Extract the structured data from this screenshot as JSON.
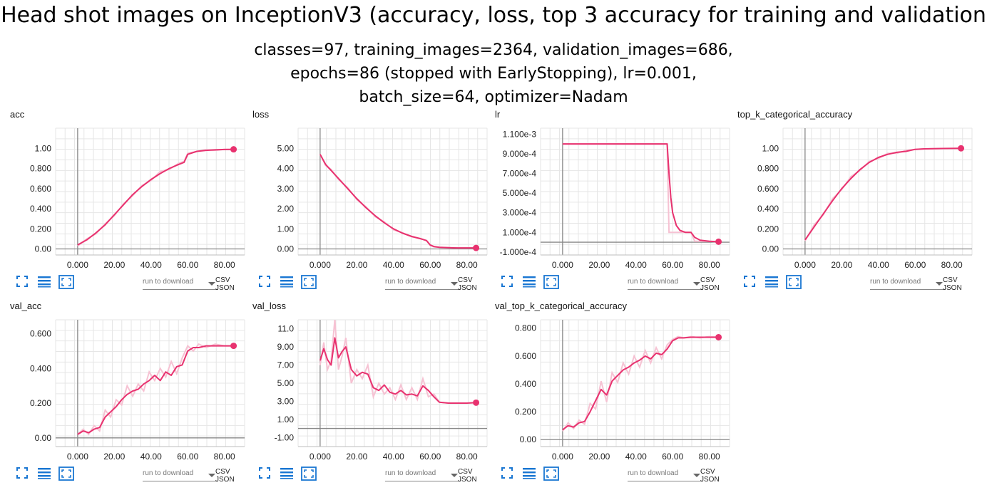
{
  "figure": {
    "title": "Head shot images on InceptionV3 (accuracy, loss, top 3 accuracy for training and validation",
    "subtitle_lines": [
      "classes=97, training_images=2364, validation_images=686,",
      "epochs=86 (stopped with EarlyStopping), lr=0.001,",
      "batch_size=64, optimizer=Nadam"
    ]
  },
  "controls": {
    "download_placeholder": "run to download",
    "csv": "CSV",
    "json": "JSON",
    "icons": [
      "fit-screen-icon",
      "list-icon",
      "expand-icon"
    ]
  },
  "colors": {
    "line": "#e8326f",
    "raw": "#f6c2d3",
    "grid": "#e6e6e6",
    "axis": "#888888",
    "icon": "#1976d2"
  },
  "chart_data": [
    {
      "title": "acc",
      "type": "line",
      "xlim": [
        -12,
        91
      ],
      "ylim": [
        -0.06,
        1.2
      ],
      "xticks": [
        0,
        20,
        40,
        60,
        80
      ],
      "xtick_labels": [
        "0.000",
        "20.00",
        "40.00",
        "60.00",
        "80.00"
      ],
      "yticks": [
        0,
        0.2,
        0.4,
        0.6,
        0.8,
        1.0
      ],
      "ytick_labels": [
        "0.00",
        "0.200",
        "0.400",
        "0.600",
        "0.800",
        "1.00"
      ],
      "x": [
        0,
        5,
        10,
        15,
        20,
        25,
        30,
        35,
        40,
        45,
        50,
        55,
        58,
        60,
        65,
        70,
        75,
        80,
        85
      ],
      "values": [
        0.04,
        0.09,
        0.16,
        0.24,
        0.34,
        0.44,
        0.54,
        0.62,
        0.69,
        0.75,
        0.8,
        0.84,
        0.86,
        0.94,
        0.97,
        0.98,
        0.985,
        0.988,
        0.99
      ],
      "raw": [
        0.03,
        0.1,
        0.15,
        0.25,
        0.33,
        0.45,
        0.53,
        0.63,
        0.68,
        0.77,
        0.79,
        0.85,
        0.87,
        0.95,
        0.97,
        0.985,
        0.98,
        0.99,
        0.99
      ],
      "grid": true
    },
    {
      "title": "loss",
      "type": "line",
      "xlim": [
        -12,
        91
      ],
      "ylim": [
        -0.3,
        6
      ],
      "xticks": [
        0,
        20,
        40,
        60,
        80
      ],
      "xtick_labels": [
        "0.000",
        "20.00",
        "40.00",
        "60.00",
        "80.00"
      ],
      "yticks": [
        0,
        1,
        2,
        3,
        4,
        5
      ],
      "ytick_labels": [
        "0.00",
        "1.00",
        "2.00",
        "3.00",
        "4.00",
        "5.00"
      ],
      "x": [
        0,
        3,
        6,
        10,
        15,
        20,
        25,
        30,
        35,
        40,
        45,
        50,
        55,
        58,
        60,
        62,
        65,
        70,
        75,
        80,
        85
      ],
      "values": [
        4.7,
        4.2,
        3.9,
        3.5,
        3.0,
        2.5,
        2.05,
        1.65,
        1.3,
        1.0,
        0.78,
        0.62,
        0.5,
        0.42,
        0.2,
        0.12,
        0.08,
        0.06,
        0.05,
        0.05,
        0.05
      ],
      "raw": [
        4.7,
        4.15,
        3.95,
        3.45,
        3.05,
        2.45,
        2.1,
        1.6,
        1.35,
        0.95,
        0.8,
        0.6,
        0.52,
        0.4,
        0.18,
        0.1,
        0.08,
        0.06,
        0.05,
        0.05,
        0.05
      ],
      "grid": true
    },
    {
      "title": "lr",
      "type": "line",
      "xlim": [
        -12,
        91
      ],
      "ylim": [
        -0.00013,
        0.00116
      ],
      "xticks": [
        0,
        20,
        40,
        60,
        80
      ],
      "xtick_labels": [
        "0.000",
        "20.00",
        "40.00",
        "60.00",
        "80.00"
      ],
      "yticks": [
        -0.0001,
        0.0001,
        0.0003,
        0.0005,
        0.0007,
        0.0009,
        0.0011
      ],
      "ytick_labels": [
        "-1.000e-4",
        "1.000e-4",
        "3.000e-4",
        "5.000e-4",
        "7.000e-4",
        "9.000e-4",
        "1.100e-3"
      ],
      "x": [
        0,
        10,
        20,
        30,
        40,
        50,
        57,
        58,
        59,
        60,
        62,
        64,
        67,
        70,
        72,
        75,
        80,
        85
      ],
      "values": [
        0.001,
        0.001,
        0.001,
        0.001,
        0.001,
        0.001,
        0.001,
        0.0007,
        0.00045,
        0.0003,
        0.00017,
        0.00012,
        0.0001,
        0.0001,
        5e-05,
        2e-05,
        1e-05,
        5e-06
      ],
      "raw": [
        0.001,
        0.001,
        0.001,
        0.001,
        0.001,
        0.001,
        0.001,
        0.0001,
        0.0001,
        0.0001,
        0.0001,
        0.0001,
        0.0001,
        0.0001,
        1e-05,
        1e-05,
        1e-05,
        1e-06
      ],
      "grid": true
    },
    {
      "title": "top_k_categorical_accuracy",
      "type": "line",
      "xlim": [
        -12,
        91
      ],
      "ylim": [
        -0.06,
        1.2
      ],
      "xticks": [
        0,
        20,
        40,
        60,
        80
      ],
      "xtick_labels": [
        "0.000",
        "20.00",
        "40.00",
        "60.00",
        "80.00"
      ],
      "yticks": [
        0,
        0.2,
        0.4,
        0.6,
        0.8,
        1.0
      ],
      "ytick_labels": [
        "0.00",
        "0.200",
        "0.400",
        "0.600",
        "0.800",
        "1.00"
      ],
      "x": [
        0,
        5,
        10,
        15,
        20,
        25,
        30,
        35,
        40,
        45,
        50,
        55,
        60,
        65,
        70,
        75,
        80,
        85
      ],
      "values": [
        0.09,
        0.22,
        0.35,
        0.48,
        0.6,
        0.7,
        0.79,
        0.86,
        0.91,
        0.94,
        0.96,
        0.97,
        0.99,
        0.995,
        0.997,
        0.998,
        0.999,
        1.0
      ],
      "raw": [
        0.08,
        0.24,
        0.34,
        0.5,
        0.59,
        0.72,
        0.78,
        0.87,
        0.9,
        0.95,
        0.95,
        0.98,
        0.99,
        0.995,
        0.997,
        0.998,
        0.999,
        1.0
      ],
      "grid": true
    },
    {
      "title": "val_acc",
      "type": "line",
      "xlim": [
        -12,
        91
      ],
      "ylim": [
        -0.05,
        0.68
      ],
      "xticks": [
        0,
        20,
        40,
        60,
        80
      ],
      "xtick_labels": [
        "0.000",
        "20.00",
        "40.00",
        "60.00",
        "80.00"
      ],
      "yticks": [
        0,
        0.2,
        0.4,
        0.6
      ],
      "ytick_labels": [
        "0.00",
        "0.200",
        "0.400",
        "0.600"
      ],
      "x": [
        0,
        3,
        6,
        9,
        12,
        15,
        18,
        21,
        24,
        27,
        30,
        33,
        36,
        39,
        42,
        45,
        48,
        51,
        54,
        57,
        60,
        63,
        66,
        70,
        75,
        80,
        85
      ],
      "values": [
        0.02,
        0.04,
        0.03,
        0.05,
        0.06,
        0.12,
        0.15,
        0.18,
        0.22,
        0.25,
        0.27,
        0.28,
        0.31,
        0.33,
        0.36,
        0.33,
        0.38,
        0.36,
        0.41,
        0.42,
        0.5,
        0.52,
        0.52,
        0.53,
        0.53,
        0.53,
        0.53
      ],
      "raw": [
        0.02,
        0.05,
        0.02,
        0.07,
        0.04,
        0.16,
        0.12,
        0.22,
        0.19,
        0.3,
        0.24,
        0.31,
        0.27,
        0.38,
        0.33,
        0.4,
        0.35,
        0.44,
        0.37,
        0.46,
        0.53,
        0.5,
        0.54,
        0.52,
        0.54,
        0.53,
        0.53
      ],
      "grid": true
    },
    {
      "title": "val_loss",
      "type": "line",
      "xlim": [
        -12,
        91
      ],
      "ylim": [
        -2.0,
        12
      ],
      "xticks": [
        0,
        20,
        40,
        60,
        80
      ],
      "xtick_labels": [
        "0.000",
        "20.00",
        "40.00",
        "60.00",
        "80.00"
      ],
      "yticks": [
        -1,
        1,
        3,
        5,
        7,
        9,
        11
      ],
      "ytick_labels": [
        "-1.00",
        "1.00",
        "3.00",
        "5.00",
        "7.00",
        "9.00",
        "11.0"
      ],
      "x": [
        0,
        2,
        4,
        6,
        8,
        10,
        12,
        14,
        17,
        20,
        23,
        26,
        29,
        32,
        35,
        38,
        41,
        44,
        47,
        50,
        53,
        56,
        59,
        62,
        65,
        70,
        75,
        80,
        85
      ],
      "values": [
        7.5,
        8.8,
        7.6,
        7.0,
        10.0,
        7.8,
        8.5,
        9.0,
        6.5,
        5.8,
        6.2,
        6.0,
        4.5,
        4.2,
        4.8,
        4.0,
        3.8,
        4.2,
        3.7,
        3.8,
        3.6,
        4.7,
        4.2,
        3.5,
        2.9,
        2.8,
        2.8,
        2.8,
        2.85
      ],
      "raw": [
        7.0,
        9.5,
        6.5,
        7.5,
        12.0,
        6.5,
        8.0,
        10.0,
        5.0,
        6.5,
        5.5,
        7.0,
        3.5,
        5.0,
        3.8,
        4.5,
        3.2,
        4.8,
        3.2,
        4.5,
        3.2,
        5.5,
        3.5,
        3.8,
        2.9,
        2.8,
        2.8,
        2.8,
        2.85
      ],
      "grid": true
    },
    {
      "title": "val_top_k_categorical_accuracy",
      "type": "line",
      "xlim": [
        -12,
        91
      ],
      "ylim": [
        -0.05,
        0.86
      ],
      "xticks": [
        0,
        20,
        40,
        60,
        80
      ],
      "xtick_labels": [
        "0.000",
        "20.00",
        "40.00",
        "60.00",
        "80.00"
      ],
      "yticks": [
        0,
        0.2,
        0.4,
        0.6,
        0.8
      ],
      "ytick_labels": [
        "0.00",
        "0.200",
        "0.400",
        "0.600",
        "0.800"
      ],
      "x": [
        0,
        3,
        6,
        9,
        12,
        15,
        18,
        21,
        24,
        27,
        30,
        33,
        36,
        39,
        42,
        45,
        48,
        51,
        54,
        57,
        60,
        63,
        66,
        70,
        75,
        80,
        85
      ],
      "values": [
        0.07,
        0.1,
        0.09,
        0.12,
        0.13,
        0.2,
        0.28,
        0.36,
        0.32,
        0.42,
        0.46,
        0.5,
        0.52,
        0.55,
        0.57,
        0.6,
        0.58,
        0.62,
        0.61,
        0.65,
        0.71,
        0.73,
        0.73,
        0.735,
        0.735,
        0.735,
        0.735
      ],
      "raw": [
        0.06,
        0.12,
        0.08,
        0.14,
        0.11,
        0.26,
        0.22,
        0.42,
        0.27,
        0.48,
        0.41,
        0.55,
        0.47,
        0.6,
        0.52,
        0.64,
        0.55,
        0.66,
        0.58,
        0.68,
        0.72,
        0.74,
        0.73,
        0.74,
        0.73,
        0.74,
        0.735
      ],
      "grid": true
    }
  ]
}
